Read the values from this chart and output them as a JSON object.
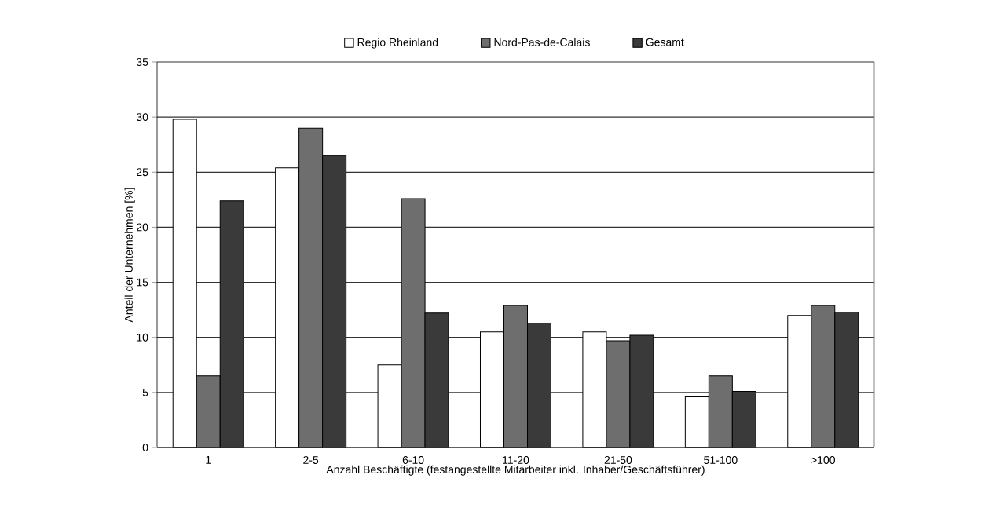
{
  "chart_data": {
    "type": "bar",
    "categories": [
      "1",
      "2-5",
      "6-10",
      "11-20",
      "21-50",
      "51-100",
      ">100"
    ],
    "series": [
      {
        "name": "Regio Rheinland",
        "color": "#ffffff",
        "values": [
          29.8,
          25.4,
          7.5,
          10.5,
          10.5,
          4.6,
          12.0
        ]
      },
      {
        "name": "Nord-Pas-de-Calais",
        "color": "#6e6e6e",
        "values": [
          6.5,
          29.0,
          22.6,
          12.9,
          9.7,
          6.5,
          12.9
        ]
      },
      {
        "name": "Gesamt",
        "color": "#3a3a3a",
        "values": [
          22.4,
          26.5,
          12.2,
          11.3,
          10.2,
          5.1,
          12.3
        ]
      }
    ],
    "xlabel": "Anzahl Beschäftigte (festangestellte Mitarbeiter inkl. Inhaber/Geschäftsführer)",
    "ylabel": "Anteil der Unternehmen [%]",
    "ylim": [
      0,
      35
    ],
    "yticks": [
      0,
      5,
      10,
      15,
      20,
      25,
      30,
      35
    ],
    "grid": "y",
    "legend": "top"
  }
}
